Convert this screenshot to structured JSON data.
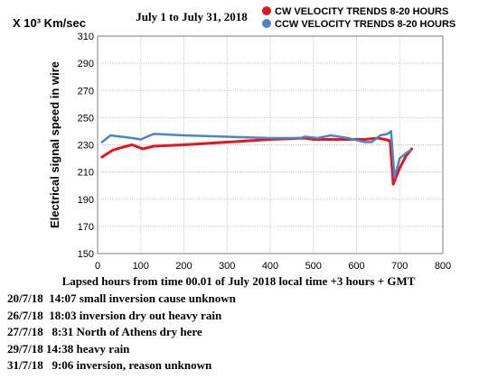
{
  "chart_data": {
    "type": "line",
    "title": "July 1 to July 31, 2018",
    "unit_label": "X 10³ Km/sec",
    "ylabel": "Electrical signal speed in wire",
    "xlabel": "Lapsed hours from time 00.01 of July 2018  local time  +3 hours + GMT",
    "xlim": [
      0,
      800
    ],
    "ylim": [
      150,
      310
    ],
    "x_ticks": [
      0,
      100,
      200,
      300,
      400,
      500,
      600,
      700,
      800
    ],
    "y_ticks": [
      150,
      170,
      190,
      210,
      230,
      250,
      270,
      290,
      310
    ],
    "grid": true,
    "legend_position": "top-right",
    "series": [
      {
        "name": "CW VELOCITY TRENDS 8-20 HOURS",
        "color": "#e8141c",
        "points": [
          [
            10,
            221
          ],
          [
            20,
            223
          ],
          [
            35,
            226
          ],
          [
            55,
            228
          ],
          [
            80,
            230
          ],
          [
            105,
            227
          ],
          [
            130,
            229
          ],
          [
            200,
            230
          ],
          [
            300,
            232
          ],
          [
            400,
            234
          ],
          [
            480,
            235
          ],
          [
            500,
            234
          ],
          [
            540,
            234
          ],
          [
            580,
            234
          ],
          [
            620,
            234
          ],
          [
            650,
            235
          ],
          [
            665,
            234
          ],
          [
            678,
            233
          ],
          [
            685,
            201
          ],
          [
            700,
            213
          ],
          [
            715,
            222
          ],
          [
            728,
            227
          ]
        ]
      },
      {
        "name": "CCW VELOCITY TRENDS 8-20 HOURS",
        "color": "#4a86c5",
        "points": [
          [
            10,
            232
          ],
          [
            30,
            237
          ],
          [
            55,
            236
          ],
          [
            80,
            235
          ],
          [
            100,
            234
          ],
          [
            130,
            238
          ],
          [
            200,
            237
          ],
          [
            300,
            236
          ],
          [
            400,
            235
          ],
          [
            470,
            235
          ],
          [
            480,
            236
          ],
          [
            510,
            235
          ],
          [
            540,
            237
          ],
          [
            580,
            235
          ],
          [
            620,
            232
          ],
          [
            635,
            232
          ],
          [
            655,
            237
          ],
          [
            672,
            238
          ],
          [
            680,
            240
          ],
          [
            688,
            206
          ],
          [
            700,
            220
          ],
          [
            715,
            224
          ],
          [
            725,
            226
          ]
        ]
      }
    ]
  },
  "notes": [
    "20/7/18  14:07 small inversion cause unknown",
    "26/7/18  18:03 inversion dry out heavy rain",
    "27/7/18   8:31 North of Athens dry here",
    "29/7/18 14:38 heavy rain",
    "31/7/18   9:06 inversion, reason unknown"
  ]
}
